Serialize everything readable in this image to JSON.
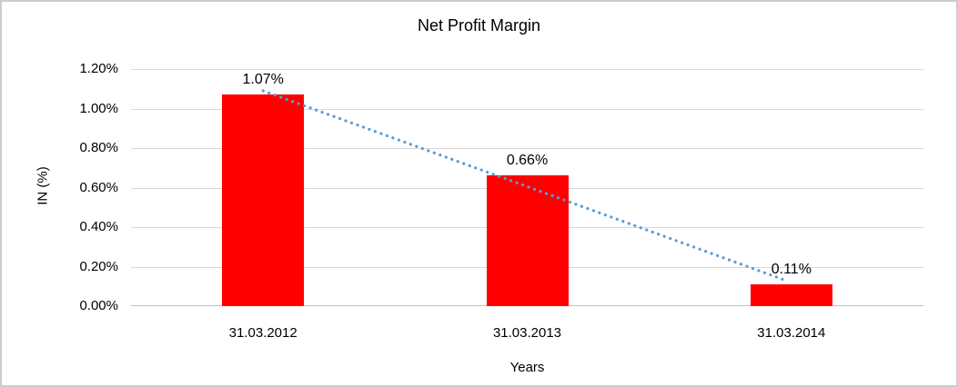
{
  "chart_data": {
    "type": "bar",
    "title": "Net Profit Margin",
    "xlabel": "Years",
    "ylabel": "IN (%)",
    "categories": [
      "31.03.2012",
      "31.03.2013",
      "31.03.2014"
    ],
    "values": [
      1.07,
      0.66,
      0.11
    ],
    "value_labels": [
      "1.07%",
      "0.66%",
      "0.11%"
    ],
    "ylim": [
      0,
      1.2
    ],
    "ytick_step": 0.2,
    "ytick_labels": [
      "0.00%",
      "0.20%",
      "0.40%",
      "0.60%",
      "0.80%",
      "1.00%",
      "1.20%"
    ],
    "grid": true,
    "legend": "none",
    "bar_color": "#FF0000",
    "gridline_color": "#D9D9D9",
    "axis_line_color": "#BFBFBF",
    "trendline": {
      "type": "linear",
      "style": "dotted",
      "color": "#5B9BD5",
      "start_value": 1.09,
      "end_value": 0.13
    }
  }
}
